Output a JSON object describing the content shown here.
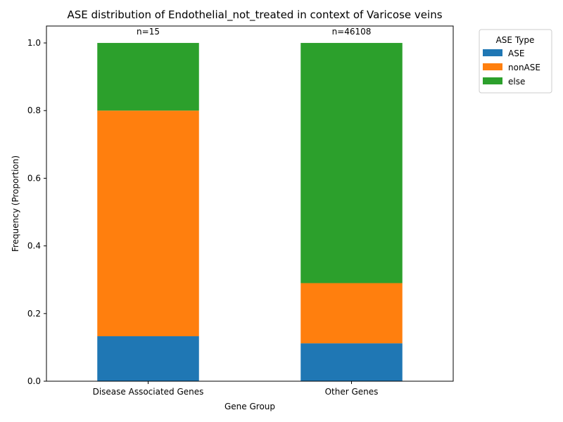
{
  "chart_data": {
    "type": "bar",
    "stacked": true,
    "title": "ASE distribution of Endothelial_not_treated in context of Varicose veins",
    "xlabel": "Gene Group",
    "ylabel": "Frequency (Proportion)",
    "categories": [
      "Disease Associated Genes",
      "Other Genes"
    ],
    "series": [
      {
        "name": "ASE",
        "color": "#1f77b4",
        "values": [
          0.133,
          0.112
        ]
      },
      {
        "name": "nonASE",
        "color": "#ff7f0e",
        "values": [
          0.667,
          0.178
        ]
      },
      {
        "name": "else",
        "color": "#2ca02c",
        "values": [
          0.2,
          0.71
        ]
      }
    ],
    "annotations": [
      "n=15",
      "n=46108"
    ],
    "ylim": [
      0,
      1.05
    ],
    "yticks": [
      0.0,
      0.2,
      0.4,
      0.6,
      0.8,
      1.0
    ],
    "ytick_labels": [
      "0.0",
      "0.2",
      "0.4",
      "0.6",
      "0.8",
      "1.0"
    ],
    "legend": {
      "title": "ASE Type",
      "placement": "outside-top-right"
    },
    "grid": false
  }
}
